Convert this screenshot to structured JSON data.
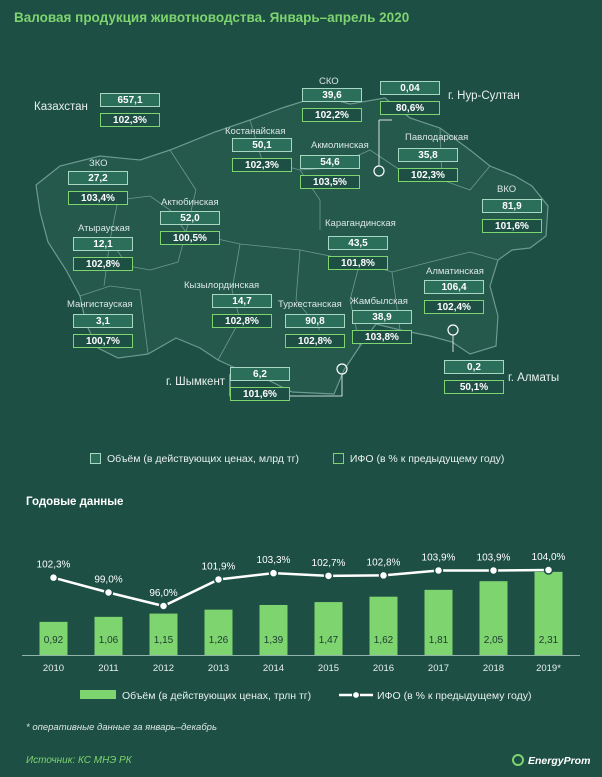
{
  "title": "Валовая продукция животноводства. Январь–апрель 2020",
  "colors": {
    "accent": "#7ed46f",
    "background": "#1d4f44",
    "map_fill": "#24594c",
    "box_fill": "#2b6e5a"
  },
  "regions": [
    {
      "id": "kazakhstan",
      "name": "Казахстан",
      "volume": "657,1",
      "ifo": "102,3%"
    },
    {
      "id": "sko",
      "name": "СКО",
      "volume": "39,6",
      "ifo": "102,2%"
    },
    {
      "id": "nursultan",
      "name": "г. Нур-Султан",
      "volume": "0,04",
      "ifo": "80,6%"
    },
    {
      "id": "kostanay",
      "name": "Костанайская",
      "volume": "50,1",
      "ifo": "102,3%"
    },
    {
      "id": "akmola",
      "name": "Акмолинская",
      "volume": "54,6",
      "ifo": "103,5%"
    },
    {
      "id": "pavlodar",
      "name": "Павлодарская",
      "volume": "35,8",
      "ifo": "102,3%"
    },
    {
      "id": "zko",
      "name": "ЗКО",
      "volume": "27,2",
      "ifo": "103,4%"
    },
    {
      "id": "aktobe",
      "name": "Актюбинская",
      "volume": "52,0",
      "ifo": "100,5%"
    },
    {
      "id": "vko",
      "name": "ВКО",
      "volume": "81,9",
      "ifo": "101,6%"
    },
    {
      "id": "atyrau",
      "name": "Атырауская",
      "volume": "12,1",
      "ifo": "102,8%"
    },
    {
      "id": "karaganda",
      "name": "Карагандинская",
      "volume": "43,5",
      "ifo": "101,8%"
    },
    {
      "id": "almaty_reg",
      "name": "Алматинская",
      "volume": "106,4",
      "ifo": "102,4%"
    },
    {
      "id": "kyzylorda",
      "name": "Кызылординская",
      "volume": "14,7",
      "ifo": "102,8%"
    },
    {
      "id": "mangystau",
      "name": "Мангистауская",
      "volume": "3,1",
      "ifo": "100,7%"
    },
    {
      "id": "turkestan",
      "name": "Туркестанская",
      "volume": "90,8",
      "ifo": "102,8%"
    },
    {
      "id": "zhambyl",
      "name": "Жамбылская",
      "volume": "38,9",
      "ifo": "103,8%"
    },
    {
      "id": "shymkent",
      "name": "г. Шымкент",
      "volume": "6,2",
      "ifo": "101,6%"
    },
    {
      "id": "almaty_city",
      "name": "г. Алматы",
      "volume": "0,2",
      "ifo": "50,1%"
    }
  ],
  "legend_map": {
    "volume": "Объём (в действующих ценах, млрд тг)",
    "ifo": "ИФО (в % к предыдущему году)"
  },
  "annual_title": "Годовые данные",
  "chart_data": {
    "type": "bar",
    "categories": [
      "2010",
      "2011",
      "2012",
      "2013",
      "2014",
      "2015",
      "2016",
      "2017",
      "2018",
      "2019*"
    ],
    "series": [
      {
        "name": "Объём (в действующих ценах, трлн тг)",
        "type": "bar",
        "values": [
          0.92,
          1.06,
          1.15,
          1.26,
          1.39,
          1.47,
          1.62,
          1.81,
          2.05,
          2.31
        ],
        "labels": [
          "0,92",
          "1,06",
          "1,15",
          "1,26",
          "1,39",
          "1,47",
          "1,62",
          "1,81",
          "2,05",
          "2,31"
        ]
      },
      {
        "name": "ИФО (в % к предыдущему году)",
        "type": "line",
        "values": [
          102.3,
          99.0,
          96.0,
          101.9,
          103.3,
          102.7,
          102.8,
          103.9,
          103.9,
          104.0
        ],
        "labels": [
          "102,3%",
          "99,0%",
          "96,0%",
          "101,9%",
          "103,3%",
          "102,7%",
          "102,8%",
          "103,9%",
          "103,9%",
          "104,0%"
        ]
      }
    ],
    "bar_color": "#7ed46f",
    "line_color": "#ffffff",
    "legend_placement": "bottom"
  },
  "footnote": "* оперативные данные за январь–декабрь",
  "source": "Источник: КС МНЭ РК",
  "logo_text": "EnergyProm"
}
